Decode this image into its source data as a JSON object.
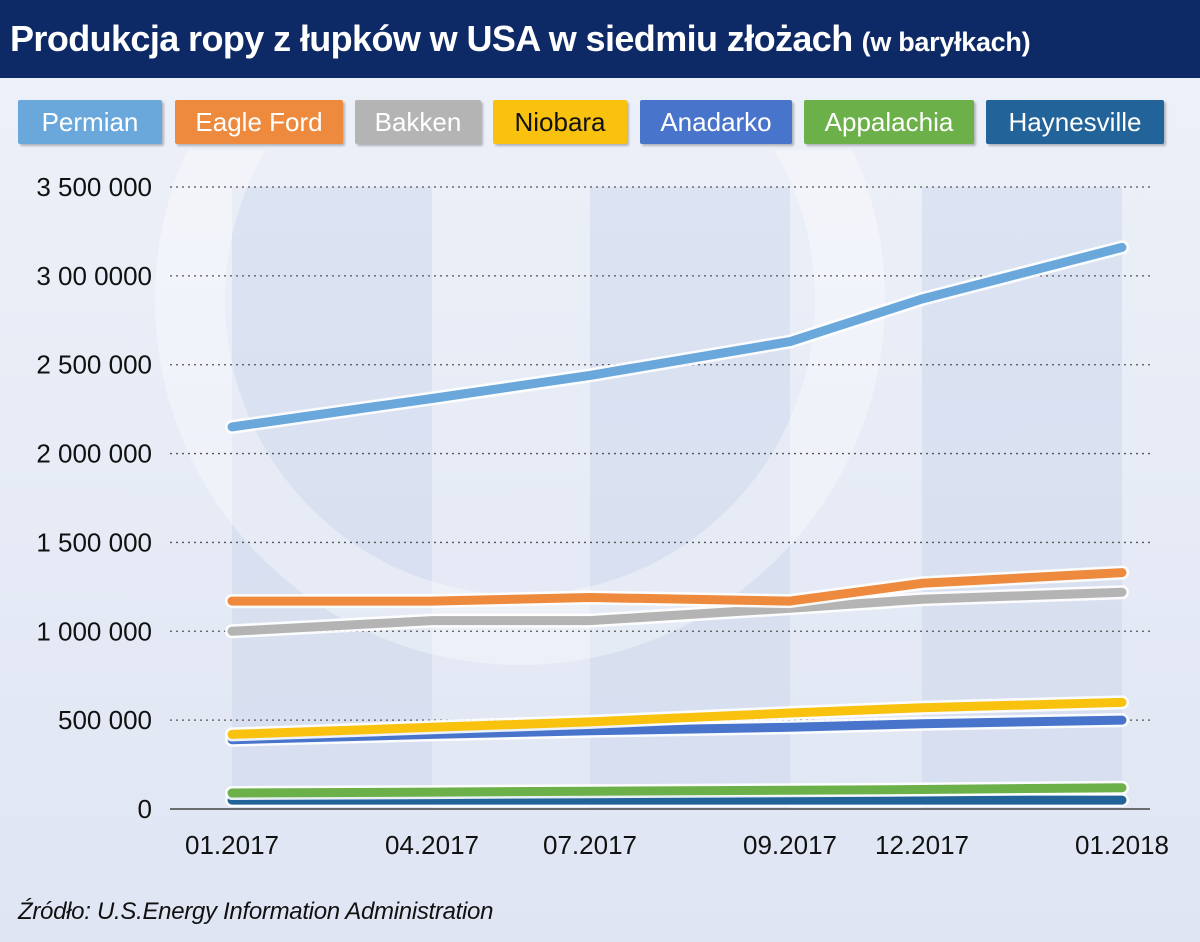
{
  "header": {
    "title": "Produkcja ropy z łupków w USA w siedmiu złożach",
    "title_unit": "(w baryłkach)"
  },
  "source": "Źródło: U.S.Energy Information Administration",
  "chart_data": {
    "type": "line",
    "title": "Produkcja ropy z łupków w USA w siedmiu złożach (w baryłkach)",
    "xlabel": "",
    "ylabel": "",
    "categories": [
      "01.2017",
      "04.2017",
      "07.2017",
      "09.2017",
      "12.2017",
      "01.2018"
    ],
    "ylim": [
      0,
      3500000
    ],
    "yticks": [
      0,
      500000,
      1000000,
      1500000,
      2000000,
      2500000,
      3000000,
      3500000
    ],
    "ytick_labels": [
      "0",
      "500 000",
      "1 000 000",
      "1 500 000",
      "2 000 000",
      "2 500 000",
      "3 00 0000",
      "3 500 000"
    ],
    "grid": "horizontal dotted",
    "legend_position": "top",
    "series": [
      {
        "name": "Permian",
        "color": "#6aa8dc",
        "text_color": "#ffffff",
        "values": [
          2150000,
          2310000,
          2440000,
          2630000,
          2870000,
          3160000
        ]
      },
      {
        "name": "Eagle Ford",
        "color": "#ee8a3d",
        "text_color": "#ffffff",
        "values": [
          1170000,
          1170000,
          1190000,
          1170000,
          1270000,
          1330000
        ]
      },
      {
        "name": "Bakken",
        "color": "#b4b4b4",
        "text_color": "#ffffff",
        "values": [
          1000000,
          1060000,
          1060000,
          1130000,
          1180000,
          1220000
        ]
      },
      {
        "name": "Niobara",
        "color": "#f9c20f",
        "text_color": "#111111",
        "values": [
          420000,
          460000,
          490000,
          540000,
          570000,
          600000
        ]
      },
      {
        "name": "Anadarko",
        "color": "#4874cc",
        "text_color": "#ffffff",
        "values": [
          390000,
          420000,
          440000,
          460000,
          480000,
          500000
        ]
      },
      {
        "name": "Appalachia",
        "color": "#6cb04a",
        "text_color": "#ffffff",
        "values": [
          90000,
          95000,
          100000,
          105000,
          110000,
          120000
        ]
      },
      {
        "name": "Haynesville",
        "color": "#22649a",
        "text_color": "#ffffff",
        "values": [
          50000,
          50000,
          50000,
          50000,
          50000,
          50000
        ]
      }
    ]
  }
}
